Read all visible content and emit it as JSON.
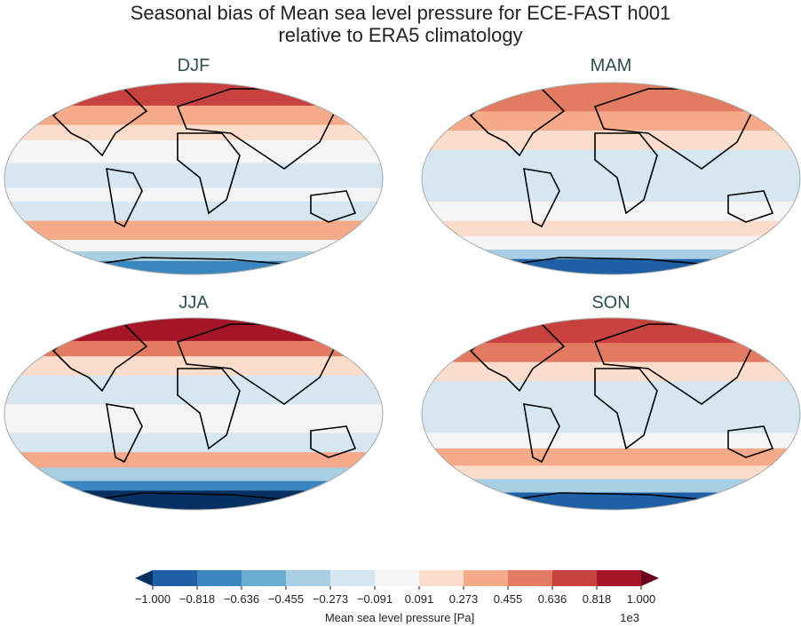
{
  "title_line1": "Seasonal bias of Mean sea level pressure for ECE-FAST h001",
  "title_line2": "relative to ERA5 climatology",
  "panels": [
    {
      "label": "DJF"
    },
    {
      "label": "MAM"
    },
    {
      "label": "JJA"
    },
    {
      "label": "SON"
    }
  ],
  "colorbar": {
    "label": "Mean sea level pressure [Pa]",
    "multiplier": "1e3",
    "ticks": [
      "−1.000",
      "−0.818",
      "−0.636",
      "−0.455",
      "−0.273",
      "−0.091",
      "0.091",
      "0.273",
      "0.455",
      "0.636",
      "0.818",
      "1.000"
    ],
    "tick_values": [
      -1.0,
      -0.818,
      -0.636,
      -0.455,
      -0.273,
      -0.091,
      0.091,
      0.273,
      0.455,
      0.636,
      0.818,
      1.0
    ],
    "extend": "both",
    "colors": [
      "#053061",
      "#1f5fa5",
      "#3a87c0",
      "#6bacd1",
      "#a8cfe4",
      "#d6e7f1",
      "#f5f5f5",
      "#fcdccb",
      "#f5aa89",
      "#e27b62",
      "#c7423f",
      "#a41528",
      "#67001f"
    ]
  }
}
